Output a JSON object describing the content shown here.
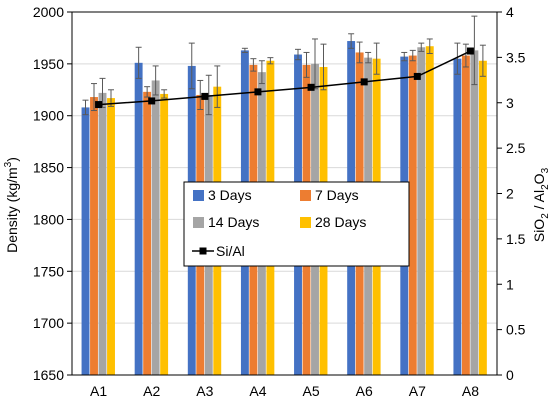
{
  "chart_data": {
    "type": "bar",
    "categories": [
      "A1",
      "A2",
      "A3",
      "A4",
      "A5",
      "A6",
      "A7",
      "A8"
    ],
    "ylabel_left": {
      "main": "Density (kg/m",
      "sup": "3",
      "tail": ")"
    },
    "ylabel_right": {
      "parts": [
        "SiO",
        "2",
        " / Al",
        "2",
        "O",
        "3"
      ]
    },
    "ylim_left": [
      1650,
      2000
    ],
    "yticks_left": [
      1650,
      1700,
      1750,
      1800,
      1850,
      1900,
      1950,
      2000
    ],
    "ylim_right": [
      0,
      4
    ],
    "yticks_right": [
      "0",
      "0.5",
      "1",
      "1.5",
      "2",
      "2.5",
      "3",
      "3.5",
      "4"
    ],
    "series": [
      {
        "name": "3 Days",
        "color": "#4472C4",
        "values": [
          1908,
          1951,
          1948,
          1963,
          1959,
          1972,
          1957,
          1955
        ],
        "errors": [
          7,
          15,
          22,
          2,
          5,
          7,
          4,
          15
        ]
      },
      {
        "name": "7 Days",
        "color": "#ED7D31",
        "values": [
          1918,
          1923,
          1920,
          1949,
          1949,
          1961,
          1958,
          1958
        ],
        "errors": [
          13,
          5,
          14,
          6,
          12,
          10,
          5,
          11
        ]
      },
      {
        "name": "14 Days",
        "color": "#A5A5A5",
        "values": [
          1922,
          1934,
          1920,
          1942,
          1950,
          1956,
          1966,
          1963
        ],
        "errors": [
          14,
          14,
          19,
          11,
          24,
          5,
          4,
          33
        ]
      },
      {
        "name": "28 Days",
        "color": "#FFC000",
        "values": [
          1917,
          1921,
          1928,
          1953,
          1947,
          1955,
          1967,
          1953
        ],
        "errors": [
          8,
          4,
          20,
          3,
          22,
          15,
          7,
          15
        ]
      }
    ],
    "line_series": {
      "name": "Si/Al",
      "color": "#000000",
      "values": [
        2.98,
        3.02,
        3.07,
        3.12,
        3.17,
        3.23,
        3.29,
        3.57
      ]
    },
    "legend_placement": "center",
    "grid": "horizontal"
  }
}
